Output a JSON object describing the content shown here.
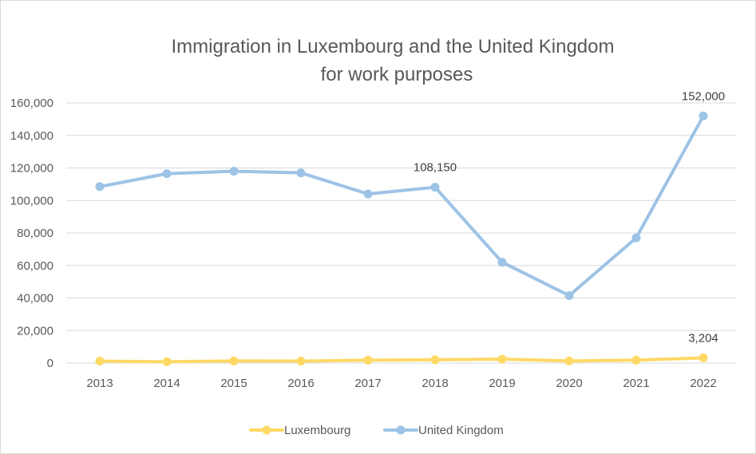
{
  "chart_data": {
    "type": "line",
    "title": "Immigration in Luxembourg and the United Kingdom",
    "subtitle": "for work purposes",
    "categories": [
      "2013",
      "2014",
      "2015",
      "2016",
      "2017",
      "2018",
      "2019",
      "2020",
      "2021",
      "2022"
    ],
    "ylim": [
      0,
      160000
    ],
    "yticks": [
      0,
      20000,
      40000,
      60000,
      80000,
      100000,
      120000,
      140000,
      160000
    ],
    "ytick_labels": [
      "0",
      "20,000",
      "40,000",
      "60,000",
      "80,000",
      "100,000",
      "120,000",
      "140,000",
      "160,000"
    ],
    "grid": true,
    "legend_position": "bottom",
    "series": [
      {
        "name": "Luxembourg",
        "color": "#ffd966",
        "values": [
          1200,
          800,
          1300,
          1200,
          1800,
          2000,
          2400,
          1300,
          1800,
          3204
        ]
      },
      {
        "name": "United Kingdom",
        "color": "#9dc3e6",
        "values": [
          108500,
          116500,
          118000,
          117000,
          104000,
          108150,
          62000,
          41500,
          77000,
          152000
        ]
      }
    ],
    "annotations": [
      {
        "series": 1,
        "index": 5,
        "text": "108,150"
      },
      {
        "series": 1,
        "index": 9,
        "text": "152,000"
      },
      {
        "series": 0,
        "index": 9,
        "text": "3,204"
      }
    ]
  }
}
